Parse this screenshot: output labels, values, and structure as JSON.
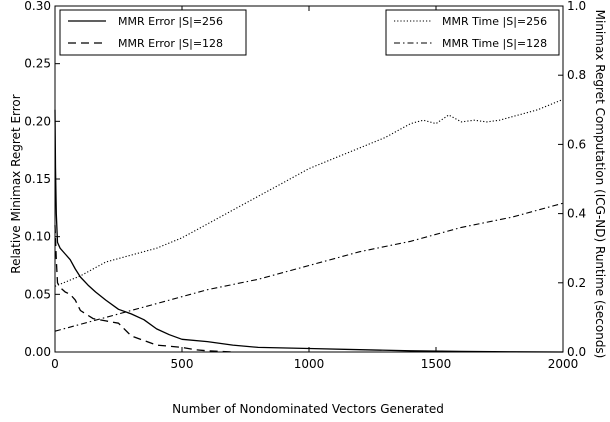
{
  "chart_data": {
    "type": "line",
    "xlabel": "Number of Nondominated Vectors Generated",
    "ylabel": "Relative Minimax Regret Error",
    "y2label": "Minimax Regret Computation (ICG-ND) Runtime (seconds)",
    "xlim": [
      0,
      2000
    ],
    "ylim": [
      0,
      0.3
    ],
    "y2lim": [
      0,
      1.0
    ],
    "x_ticks": [
      "0",
      "500",
      "1000",
      "1500",
      "2000"
    ],
    "y_ticks": [
      "0.00",
      "0.05",
      "0.10",
      "0.15",
      "0.20",
      "0.25",
      "0.30"
    ],
    "y2_ticks": [
      "0.0",
      "0.2",
      "0.4",
      "0.6",
      "0.8",
      "1.0"
    ],
    "grid": false,
    "legend_left_position": "top-left",
    "legend_right_position": "top-right",
    "series": [
      {
        "name": "MMR Error |S|=256",
        "axis": "left",
        "style": "solid",
        "x": [
          0,
          2,
          5,
          10,
          20,
          40,
          60,
          80,
          100,
          130,
          160,
          200,
          250,
          300,
          350,
          400,
          450,
          500,
          600,
          700,
          800,
          1000,
          1200,
          1400,
          1600,
          1800,
          2000
        ],
        "y": [
          0.21,
          0.16,
          0.12,
          0.095,
          0.09,
          0.085,
          0.08,
          0.072,
          0.065,
          0.058,
          0.052,
          0.045,
          0.037,
          0.033,
          0.028,
          0.02,
          0.015,
          0.011,
          0.009,
          0.006,
          0.004,
          0.003,
          0.002,
          0.001,
          0.0005,
          0.0002,
          0.0
        ]
      },
      {
        "name": "MMR Error |S|=128",
        "axis": "left",
        "style": "dashed",
        "x": [
          0,
          5,
          10,
          20,
          40,
          60,
          80,
          100,
          150,
          200,
          250,
          300,
          350,
          400,
          450,
          500,
          550,
          600,
          650,
          700
        ],
        "y": [
          0.11,
          0.08,
          0.06,
          0.056,
          0.052,
          0.05,
          0.045,
          0.036,
          0.029,
          0.027,
          0.025,
          0.014,
          0.01,
          0.006,
          0.005,
          0.004,
          0.002,
          0.001,
          0.0005,
          0.0
        ]
      },
      {
        "name": "MMR Time |S|=256",
        "axis": "right",
        "style": "dotted",
        "x": [
          0,
          100,
          200,
          300,
          400,
          500,
          600,
          700,
          800,
          900,
          1000,
          1100,
          1200,
          1300,
          1400,
          1450,
          1500,
          1550,
          1600,
          1650,
          1700,
          1750,
          1800,
          1900,
          2000
        ],
        "y": [
          0.19,
          0.22,
          0.26,
          0.28,
          0.3,
          0.33,
          0.37,
          0.41,
          0.45,
          0.49,
          0.53,
          0.56,
          0.59,
          0.62,
          0.66,
          0.67,
          0.66,
          0.685,
          0.665,
          0.67,
          0.665,
          0.67,
          0.68,
          0.7,
          0.73
        ]
      },
      {
        "name": "MMR Time |S|=128",
        "axis": "right",
        "style": "dashdot",
        "x": [
          0,
          200,
          400,
          600,
          800,
          1000,
          1200,
          1400,
          1600,
          1800,
          2000
        ],
        "y": [
          0.06,
          0.1,
          0.14,
          0.18,
          0.21,
          0.25,
          0.29,
          0.32,
          0.36,
          0.39,
          0.43
        ]
      }
    ]
  }
}
